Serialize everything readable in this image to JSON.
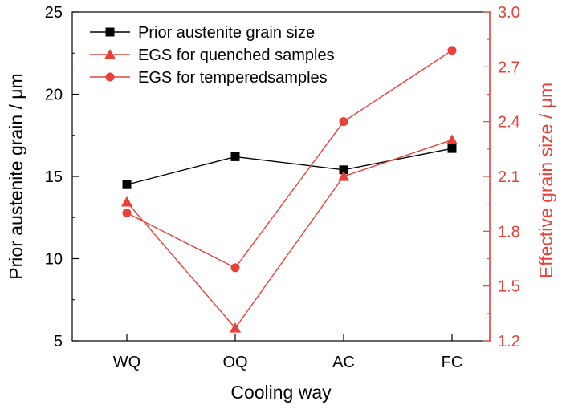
{
  "chart_data": {
    "type": "line",
    "categories": [
      "WQ",
      "OQ",
      "AC",
      "FC"
    ],
    "xlabel": "Cooling way",
    "ylabel_left": "Prior austenite grain / μm",
    "ylabel_right": "Effective grain size / μm",
    "ylim_left": [
      5,
      25
    ],
    "yticks_left": [
      "5",
      "10",
      "15",
      "20",
      "25"
    ],
    "ylim_right": [
      1.2,
      3.0
    ],
    "yticks_right": [
      "1.2",
      "1.5",
      "1.8",
      "2.1",
      "2.4",
      "2.7",
      "3.0"
    ],
    "grid": false,
    "legend_position": "top-left",
    "series": [
      {
        "name": "Prior austenite grain size",
        "axis": "left",
        "marker": "square",
        "color": "#000000",
        "values": [
          14.5,
          16.2,
          15.4,
          16.7
        ]
      },
      {
        "name": "EGS for quenched samples",
        "axis": "right",
        "marker": "triangle",
        "color": "#e8413a",
        "values": [
          1.96,
          1.27,
          2.1,
          2.3
        ]
      },
      {
        "name": "EGS for temperedsamples",
        "axis": "right",
        "marker": "circle",
        "color": "#e8413a",
        "values": [
          1.9,
          1.6,
          2.4,
          2.79
        ]
      }
    ],
    "colors": {
      "left_axis": "#000000",
      "right_axis": "#e8413a"
    }
  }
}
